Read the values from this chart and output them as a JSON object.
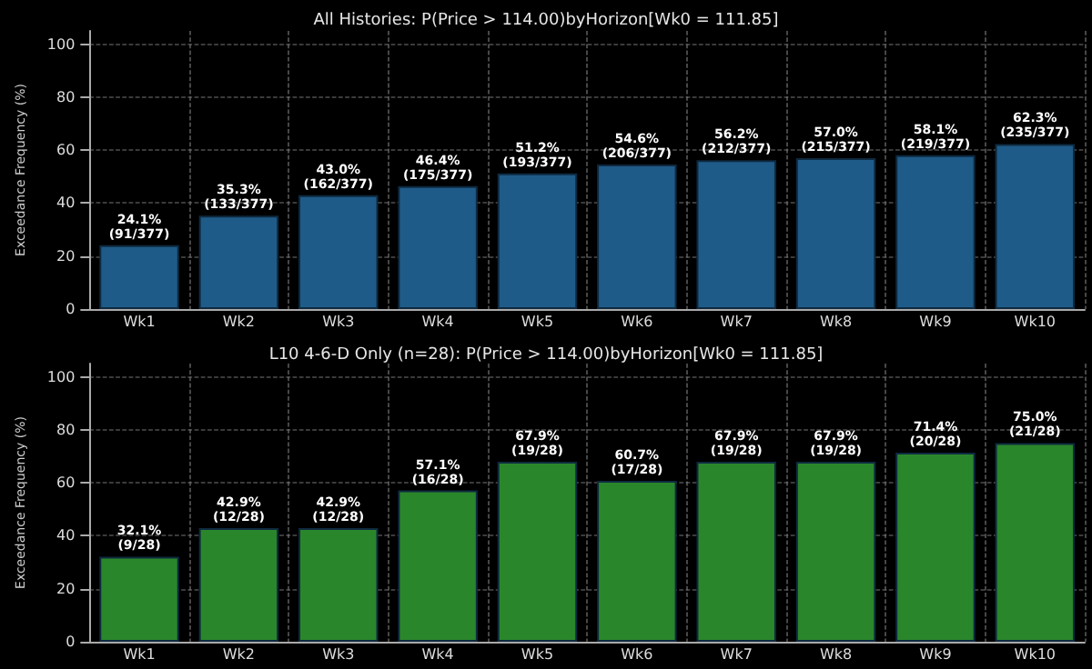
{
  "chart_data": [
    {
      "type": "bar",
      "title": "All Histories: P(Price > 114.00)byHorizon[Wk0 = 111.85]",
      "ylabel": "Exceedance Frequency (%)",
      "categories": [
        "Wk1",
        "Wk2",
        "Wk3",
        "Wk4",
        "Wk5",
        "Wk6",
        "Wk7",
        "Wk8",
        "Wk9",
        "Wk10"
      ],
      "values": [
        24.1,
        35.3,
        43.0,
        46.4,
        51.2,
        54.6,
        56.2,
        57.0,
        58.1,
        62.3
      ],
      "value_labels": [
        "24.1%\n(91/377)",
        "35.3%\n(133/377)",
        "43.0%\n(162/377)",
        "46.4%\n(175/377)",
        "51.2%\n(193/377)",
        "54.6%\n(206/377)",
        "56.2%\n(212/377)",
        "57.0%\n(215/377)",
        "58.1%\n(219/377)",
        "62.3%\n(235/377)"
      ],
      "color": "#1f5b88",
      "ylim": [
        0,
        105
      ],
      "yticks": [
        0,
        20,
        40,
        60,
        80,
        100
      ],
      "grid": true
    },
    {
      "type": "bar",
      "title": "L10 4-6-D Only (n=28): P(Price > 114.00)byHorizon[Wk0 = 111.85]",
      "ylabel": "Exceedance Frequency (%)",
      "categories": [
        "Wk1",
        "Wk2",
        "Wk3",
        "Wk4",
        "Wk5",
        "Wk6",
        "Wk7",
        "Wk8",
        "Wk9",
        "Wk10"
      ],
      "values": [
        32.1,
        42.9,
        42.9,
        57.1,
        67.9,
        60.7,
        67.9,
        67.9,
        71.4,
        75.0
      ],
      "value_labels": [
        "32.1%\n(9/28)",
        "42.9%\n(12/28)",
        "42.9%\n(12/28)",
        "57.1%\n(16/28)",
        "67.9%\n(19/28)",
        "60.7%\n(17/28)",
        "67.9%\n(19/28)",
        "67.9%\n(19/28)",
        "71.4%\n(20/28)",
        "75.0%\n(21/28)"
      ],
      "color": "#2a862a",
      "ylim": [
        0,
        105
      ],
      "yticks": [
        0,
        20,
        40,
        60,
        80,
        100
      ],
      "grid": true
    }
  ]
}
